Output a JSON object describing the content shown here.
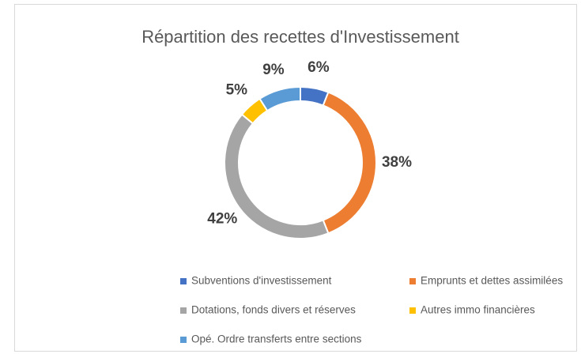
{
  "chart_data": {
    "type": "pie",
    "title": "Répartition des recettes d'Investissement",
    "categories": [
      "Subventions d'investissement",
      "Emprunts et dettes assimilées",
      "Dotations, fonds divers et réserves",
      "Autres immo financières",
      "Opé. Ordre transferts entre sections"
    ],
    "values": [
      6,
      38,
      42,
      5,
      9
    ],
    "value_labels": [
      "6%",
      "38%",
      "42%",
      "5%",
      "9%"
    ],
    "colors": [
      "#4472c4",
      "#ed7d31",
      "#a5a5a5",
      "#ffc000",
      "#5b9bd5"
    ],
    "legend": "bottom"
  }
}
